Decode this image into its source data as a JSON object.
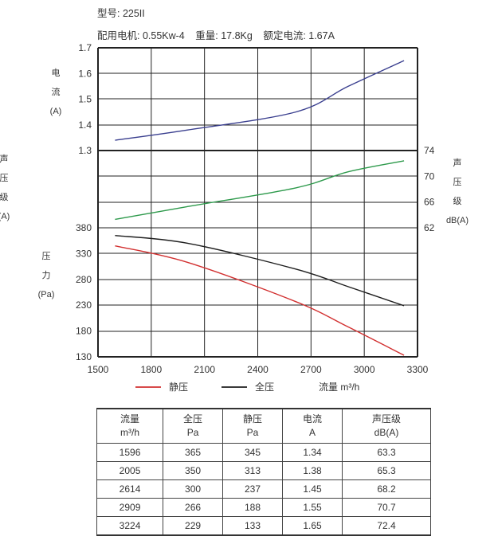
{
  "header": {
    "model": "型号: 225II",
    "motor": "配用电机: 0.55Kw-4",
    "weight": "重量: 17.8Kg",
    "rated_current": "额定电流: 1.67A"
  },
  "chart_data": {
    "type": "line",
    "xlabel": "流量 m³/h",
    "x_ticks": [
      1500,
      1800,
      2100,
      2400,
      2700,
      3000,
      3300
    ],
    "xlim": [
      1500,
      3300
    ],
    "panels": {
      "current": {
        "ylabel_lines": [
          "电",
          "流",
          "(A)"
        ],
        "ylim": [
          1.3,
          1.7
        ],
        "ticks": [
          1.3,
          1.4,
          1.5,
          1.6,
          1.7
        ],
        "tick_labels": [
          "1.3",
          "1.4",
          "1.5",
          "1.6",
          "1.7"
        ]
      },
      "noise": {
        "ylabel_lines": [
          "声",
          "压",
          "级",
          "dB(A)"
        ],
        "ylim": [
          62,
          74
        ],
        "ticks": [
          62,
          66,
          70,
          74
        ],
        "tick_labels": [
          "62",
          "66",
          "70",
          "74"
        ]
      },
      "pressure": {
        "ylabel_lines": [
          "压",
          "力",
          "(Pa)"
        ],
        "ylim": [
          130,
          380
        ],
        "ticks": [
          130,
          180,
          230,
          280,
          330,
          380
        ],
        "tick_labels": [
          "130",
          "180",
          "230",
          "280",
          "330",
          "380"
        ]
      },
      "cut_left_label": [
        "声",
        "压",
        "级",
        "(A)"
      ]
    },
    "series": [
      {
        "key": "current",
        "panel": "current",
        "color": "#3a3f8f",
        "x": [
          1596,
          2005,
          2614,
          2909,
          3224
        ],
        "y": [
          1.34,
          1.38,
          1.45,
          1.55,
          1.65
        ]
      },
      {
        "key": "noise",
        "panel": "noise",
        "color": "#2e9a4c",
        "x": [
          1596,
          2005,
          2614,
          2909,
          3224
        ],
        "y": [
          63.3,
          65.3,
          68.2,
          70.7,
          72.4
        ]
      },
      {
        "key": "total",
        "panel": "pressure",
        "name": "全压",
        "color": "#1e1e1e",
        "x": [
          1596,
          2005,
          2614,
          2909,
          3224
        ],
        "y": [
          365,
          350,
          300,
          266,
          229
        ]
      },
      {
        "key": "static",
        "panel": "pressure",
        "name": "静压",
        "color": "#d23030",
        "x": [
          1596,
          2005,
          2614,
          2909,
          3224
        ],
        "y": [
          345,
          313,
          237,
          188,
          133
        ]
      }
    ],
    "legend": [
      {
        "label": "静压",
        "color": "#d23030"
      },
      {
        "label": "全压",
        "color": "#1e1e1e"
      }
    ],
    "grid": true,
    "legend_position": "bottom"
  },
  "table": {
    "headers": [
      [
        "流量",
        "m³/h"
      ],
      [
        "全压",
        "Pa"
      ],
      [
        "静压",
        "Pa"
      ],
      [
        "电流",
        "A"
      ],
      [
        "声压级",
        "dB(A)"
      ]
    ],
    "rows": [
      [
        "1596",
        "365",
        "345",
        "1.34",
        "63.3"
      ],
      [
        "2005",
        "350",
        "313",
        "1.38",
        "65.3"
      ],
      [
        "2614",
        "300",
        "237",
        "1.45",
        "68.2"
      ],
      [
        "2909",
        "266",
        "188",
        "1.55",
        "70.7"
      ],
      [
        "3224",
        "229",
        "133",
        "1.65",
        "72.4"
      ]
    ]
  }
}
